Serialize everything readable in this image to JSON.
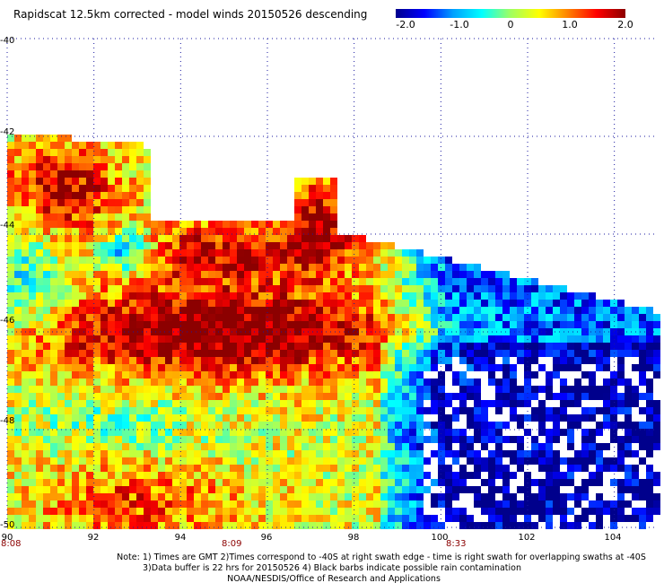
{
  "title": "Rapidscat 12.5km corrected - model winds 20150526 descending",
  "colorbar": {
    "tick_labels": [
      "-2.0",
      "-1.0",
      "0",
      "1.0",
      "2.0"
    ],
    "ticks": [
      -2.0,
      -1.0,
      0,
      1.0,
      2.0
    ],
    "min": -2.0,
    "max": 2.0,
    "stops": [
      "#00008c",
      "#0000ff",
      "#00a0ff",
      "#00ffff",
      "#a0ff60",
      "#ffff00",
      "#ff8000",
      "#ff0000",
      "#8c0000"
    ]
  },
  "axes": {
    "lon_labels": [
      "90",
      "92",
      "94",
      "96",
      "98",
      "100",
      "102",
      "104"
    ],
    "lat_labels": [
      "-40",
      "-42",
      "-44",
      "-46",
      "-48",
      "-50"
    ],
    "lon_range": [
      90,
      105
    ],
    "lat_range": [
      -40,
      -50
    ]
  },
  "times": [
    {
      "label": "8:08",
      "lon": 90
    },
    {
      "label": "8:09",
      "lon": 95
    },
    {
      "label": "8:33",
      "lon": 100
    }
  ],
  "notes": {
    "line1": "Note: 1) Times are GMT 2)Times correspond to -40S at right swath edge - time is right swath for overlapping swaths at -40S",
    "line2": "3)Data buffer is 22 hrs for 20150526 4) Black barbs indicate possible rain contamination",
    "line3": "NOAA/NESDIS/Office of Research and Applications"
  },
  "colors": {
    "grid": "#1a1aa0",
    "time_label": "#8b0000",
    "text": "#000000"
  }
}
